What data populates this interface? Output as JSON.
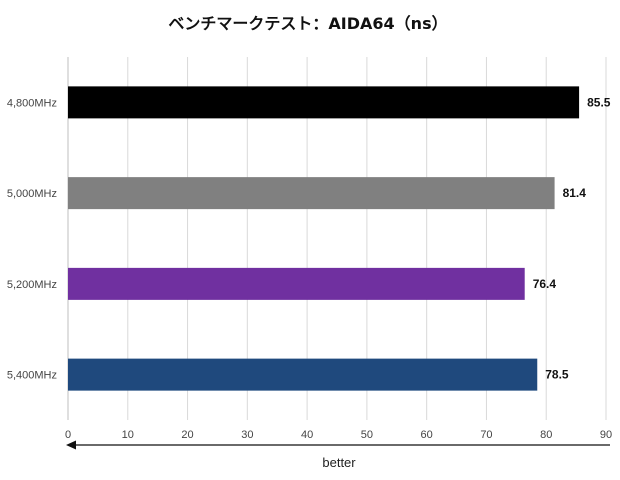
{
  "chart_data": {
    "type": "bar",
    "orientation": "horizontal",
    "title": "ベンチマークテスト：AIDA64（ns）",
    "categories": [
      "4,800MHz",
      "5,000MHz",
      "5,200MHz",
      "5,400MHz"
    ],
    "values": [
      85.5,
      81.4,
      76.4,
      78.5
    ],
    "value_labels": [
      "85.5",
      "81.4",
      "76.4",
      "78.5"
    ],
    "colors": [
      "#000000",
      "#808080",
      "#7030a0",
      "#1f497d"
    ],
    "xlim": [
      0,
      90
    ],
    "x_ticks": [
      "0",
      "10",
      "20",
      "30",
      "40",
      "50",
      "60",
      "70",
      "80",
      "90"
    ],
    "xlabel": "better",
    "ylabel": "",
    "grid": "vertical",
    "legend": "none"
  }
}
